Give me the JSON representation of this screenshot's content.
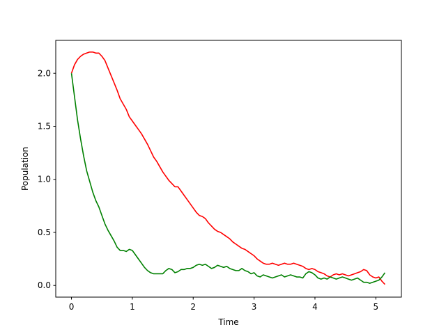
{
  "chart_data": {
    "type": "line",
    "title": "",
    "xlabel": "Time",
    "ylabel": "Population",
    "xlim": [
      -0.258,
      5.42
    ],
    "ylim": [
      -0.11,
      2.31
    ],
    "xticks": [
      0,
      1,
      2,
      3,
      4,
      5
    ],
    "yticks": [
      0.0,
      0.5,
      1.0,
      1.5,
      2.0
    ],
    "xtick_labels": [
      "0",
      "1",
      "2",
      "3",
      "4",
      "5"
    ],
    "ytick_labels": [
      "0.0",
      "0.5",
      "1.0",
      "1.5",
      "2.0"
    ],
    "grid": false,
    "legend": "none",
    "series": [
      {
        "color": "#ff0000",
        "x": [
          0.0,
          0.05,
          0.1,
          0.15,
          0.2,
          0.25,
          0.3,
          0.35,
          0.4,
          0.45,
          0.5,
          0.55,
          0.6,
          0.65,
          0.7,
          0.75,
          0.8,
          0.85,
          0.9,
          0.95,
          1.0,
          1.05,
          1.1,
          1.15,
          1.2,
          1.25,
          1.3,
          1.35,
          1.4,
          1.45,
          1.5,
          1.55,
          1.6,
          1.65,
          1.7,
          1.75,
          1.8,
          1.85,
          1.9,
          1.95,
          2.0,
          2.05,
          2.1,
          2.15,
          2.2,
          2.25,
          2.3,
          2.35,
          2.4,
          2.45,
          2.5,
          2.55,
          2.6,
          2.65,
          2.7,
          2.75,
          2.8,
          2.85,
          2.9,
          2.95,
          3.0,
          3.05,
          3.1,
          3.15,
          3.2,
          3.25,
          3.3,
          3.35,
          3.4,
          3.45,
          3.5,
          3.55,
          3.6,
          3.65,
          3.7,
          3.75,
          3.8,
          3.85,
          3.9,
          3.95,
          4.0,
          4.05,
          4.1,
          4.15,
          4.2,
          4.25,
          4.3,
          4.35,
          4.4,
          4.45,
          4.5,
          4.55,
          4.6,
          4.65,
          4.7,
          4.75,
          4.8,
          4.85,
          4.9,
          4.95,
          5.0,
          5.05,
          5.1,
          5.15
        ],
        "y": [
          2.0,
          2.08,
          2.13,
          2.16,
          2.18,
          2.19,
          2.2,
          2.2,
          2.19,
          2.19,
          2.16,
          2.12,
          2.05,
          1.98,
          1.91,
          1.84,
          1.76,
          1.71,
          1.66,
          1.59,
          1.55,
          1.51,
          1.47,
          1.43,
          1.38,
          1.33,
          1.27,
          1.21,
          1.17,
          1.12,
          1.07,
          1.03,
          0.99,
          0.96,
          0.93,
          0.93,
          0.89,
          0.85,
          0.81,
          0.77,
          0.73,
          0.69,
          0.66,
          0.65,
          0.63,
          0.59,
          0.56,
          0.53,
          0.51,
          0.5,
          0.48,
          0.46,
          0.44,
          0.41,
          0.39,
          0.37,
          0.35,
          0.34,
          0.32,
          0.3,
          0.28,
          0.25,
          0.23,
          0.21,
          0.2,
          0.2,
          0.21,
          0.2,
          0.19,
          0.2,
          0.21,
          0.2,
          0.2,
          0.21,
          0.2,
          0.19,
          0.18,
          0.16,
          0.15,
          0.16,
          0.15,
          0.13,
          0.12,
          0.11,
          0.09,
          0.08,
          0.1,
          0.11,
          0.1,
          0.11,
          0.1,
          0.09,
          0.1,
          0.11,
          0.12,
          0.13,
          0.15,
          0.14,
          0.1,
          0.08,
          0.07,
          0.08,
          0.04,
          0.01
        ]
      },
      {
        "color": "#008000",
        "x": [
          0.0,
          0.05,
          0.1,
          0.15,
          0.2,
          0.25,
          0.3,
          0.35,
          0.4,
          0.45,
          0.5,
          0.55,
          0.6,
          0.65,
          0.7,
          0.75,
          0.8,
          0.85,
          0.9,
          0.95,
          1.0,
          1.05,
          1.1,
          1.15,
          1.2,
          1.25,
          1.3,
          1.35,
          1.4,
          1.45,
          1.5,
          1.55,
          1.6,
          1.65,
          1.7,
          1.75,
          1.8,
          1.85,
          1.9,
          1.95,
          2.0,
          2.05,
          2.1,
          2.15,
          2.2,
          2.25,
          2.3,
          2.35,
          2.4,
          2.45,
          2.5,
          2.55,
          2.6,
          2.65,
          2.7,
          2.75,
          2.8,
          2.85,
          2.9,
          2.95,
          3.0,
          3.05,
          3.1,
          3.15,
          3.2,
          3.25,
          3.3,
          3.35,
          3.4,
          3.45,
          3.5,
          3.55,
          3.6,
          3.65,
          3.7,
          3.75,
          3.8,
          3.85,
          3.9,
          3.95,
          4.0,
          4.05,
          4.1,
          4.15,
          4.2,
          4.25,
          4.3,
          4.35,
          4.4,
          4.45,
          4.5,
          4.55,
          4.6,
          4.65,
          4.7,
          4.75,
          4.8,
          4.85,
          4.9,
          4.95,
          5.0,
          5.05,
          5.1,
          5.15
        ],
        "y": [
          2.0,
          1.78,
          1.56,
          1.38,
          1.22,
          1.08,
          0.98,
          0.88,
          0.8,
          0.74,
          0.66,
          0.58,
          0.52,
          0.47,
          0.42,
          0.36,
          0.33,
          0.33,
          0.32,
          0.34,
          0.33,
          0.29,
          0.25,
          0.21,
          0.17,
          0.14,
          0.12,
          0.11,
          0.11,
          0.11,
          0.11,
          0.14,
          0.16,
          0.15,
          0.12,
          0.13,
          0.15,
          0.15,
          0.16,
          0.16,
          0.17,
          0.19,
          0.2,
          0.19,
          0.2,
          0.18,
          0.16,
          0.17,
          0.19,
          0.18,
          0.17,
          0.18,
          0.16,
          0.15,
          0.14,
          0.14,
          0.16,
          0.14,
          0.13,
          0.11,
          0.12,
          0.09,
          0.08,
          0.1,
          0.09,
          0.08,
          0.07,
          0.08,
          0.09,
          0.1,
          0.08,
          0.09,
          0.1,
          0.09,
          0.08,
          0.08,
          0.07,
          0.11,
          0.13,
          0.12,
          0.1,
          0.07,
          0.06,
          0.07,
          0.06,
          0.08,
          0.07,
          0.06,
          0.07,
          0.08,
          0.07,
          0.06,
          0.05,
          0.06,
          0.07,
          0.05,
          0.03,
          0.03,
          0.02,
          0.03,
          0.04,
          0.05,
          0.08,
          0.12
        ]
      }
    ]
  }
}
